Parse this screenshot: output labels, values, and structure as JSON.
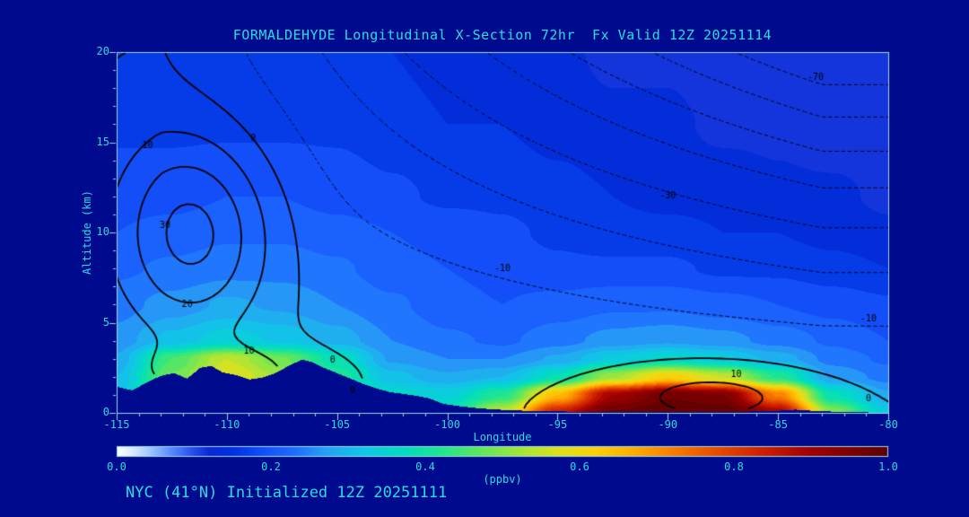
{
  "title": "FORMALDEHYDE Longitudinal X-Section 72hr  Fx Valid 12Z 20251114",
  "footer": "NYC (41°N) Initialized 12Z 20251111",
  "colors": {
    "background": "#000a8f",
    "text_cyan": "#2bdcdc",
    "frame": "#9cd9d9",
    "contour_lines": "#000000"
  },
  "chart_data": {
    "type": "heatmap",
    "subtype": "filled-contour-longitudinal-cross-section",
    "title": "FORMALDEHYDE Longitudinal X-Section 72hr  Fx Valid 12Z 20251114",
    "xlabel": "Longitude",
    "ylabel": "Altitude (km)",
    "xlim": [
      -115,
      -80
    ],
    "ylim": [
      0,
      20
    ],
    "x_ticks": [
      -115,
      -110,
      -105,
      -100,
      -95,
      -90,
      -85,
      -80
    ],
    "y_ticks": [
      0,
      5,
      10,
      15,
      20
    ],
    "fill_units": "ppbv",
    "fill_band_interval": 0.025,
    "colorbar": {
      "label": "(ppbv)",
      "ticks": [
        "0.0",
        "0.2",
        "0.4",
        "0.6",
        "0.8",
        "1.0"
      ],
      "stops": [
        [
          0.0,
          "#ffffff"
        ],
        [
          0.02,
          "#dcecff"
        ],
        [
          0.045,
          "#9bc4ff"
        ],
        [
          0.07,
          "#5a8cff"
        ],
        [
          0.095,
          "#2d55f0"
        ],
        [
          0.12,
          "#0a28d2"
        ],
        [
          0.15,
          "#0031e0"
        ],
        [
          0.19,
          "#1450fa"
        ],
        [
          0.23,
          "#1e6eff"
        ],
        [
          0.27,
          "#28a0f5"
        ],
        [
          0.32,
          "#0fc8e6"
        ],
        [
          0.37,
          "#00dcc3"
        ],
        [
          0.42,
          "#1ee691"
        ],
        [
          0.47,
          "#5fe65f"
        ],
        [
          0.52,
          "#a0e63c"
        ],
        [
          0.57,
          "#dce11e"
        ],
        [
          0.62,
          "#fad20a"
        ],
        [
          0.67,
          "#ffad00"
        ],
        [
          0.72,
          "#f87e00"
        ],
        [
          0.78,
          "#e64b00"
        ],
        [
          0.84,
          "#cd1e00"
        ],
        [
          0.9,
          "#a00000"
        ],
        [
          1.0,
          "#5c0000"
        ]
      ]
    },
    "grid_x": [
      -115,
      -112.5,
      -110,
      -107.5,
      -105,
      -102.5,
      -100,
      -97.5,
      -95,
      -92.5,
      -90,
      -87.5,
      -85,
      -82.5,
      -80
    ],
    "grid_y": [
      0,
      1,
      2,
      3,
      4,
      6,
      8,
      10,
      12,
      16,
      20
    ],
    "formaldehyde_ppbv": [
      [
        0.35,
        0.55,
        0.65,
        0.6,
        0.5,
        0.42,
        0.4,
        0.55,
        0.85,
        0.98,
        1.0,
        1.0,
        0.9,
        0.5,
        0.33
      ],
      [
        0.32,
        0.5,
        0.58,
        0.52,
        0.44,
        0.36,
        0.34,
        0.42,
        0.65,
        0.9,
        0.97,
        0.95,
        0.72,
        0.38,
        0.28
      ],
      [
        0.3,
        0.48,
        0.58,
        0.52,
        0.42,
        0.31,
        0.28,
        0.3,
        0.38,
        0.52,
        0.62,
        0.55,
        0.42,
        0.27,
        0.24
      ],
      [
        0.28,
        0.45,
        0.55,
        0.48,
        0.38,
        0.27,
        0.25,
        0.25,
        0.28,
        0.33,
        0.36,
        0.33,
        0.29,
        0.24,
        0.22
      ],
      [
        0.26,
        0.31,
        0.34,
        0.32,
        0.29,
        0.25,
        0.23,
        0.22,
        0.24,
        0.26,
        0.27,
        0.26,
        0.24,
        0.22,
        0.2
      ],
      [
        0.24,
        0.26,
        0.28,
        0.27,
        0.25,
        0.23,
        0.21,
        0.2,
        0.21,
        0.22,
        0.22,
        0.21,
        0.2,
        0.19,
        0.18
      ],
      [
        0.22,
        0.23,
        0.24,
        0.24,
        0.23,
        0.21,
        0.2,
        0.19,
        0.18,
        0.18,
        0.18,
        0.17,
        0.17,
        0.16,
        0.15
      ],
      [
        0.2,
        0.21,
        0.22,
        0.22,
        0.21,
        0.2,
        0.19,
        0.18,
        0.17,
        0.16,
        0.16,
        0.15,
        0.15,
        0.14,
        0.13
      ],
      [
        0.19,
        0.19,
        0.2,
        0.2,
        0.19,
        0.18,
        0.17,
        0.17,
        0.16,
        0.15,
        0.14,
        0.14,
        0.13,
        0.13,
        0.12
      ],
      [
        0.17,
        0.17,
        0.17,
        0.17,
        0.17,
        0.16,
        0.15,
        0.15,
        0.14,
        0.13,
        0.13,
        0.12,
        0.12,
        0.11,
        0.11
      ],
      [
        0.16,
        0.16,
        0.16,
        0.16,
        0.16,
        0.15,
        0.14,
        0.14,
        0.13,
        0.12,
        0.12,
        0.11,
        0.11,
        0.1,
        0.1
      ]
    ],
    "terrain_km": {
      "x": [
        -115,
        -114.3,
        -113.6,
        -113.0,
        -112.4,
        -111.8,
        -111.2,
        -110.7,
        -110.2,
        -109.6,
        -109.0,
        -108.4,
        -107.8,
        -107.2,
        -106.6,
        -106.1,
        -105.6,
        -105.0,
        -104.4,
        -103.8,
        -103.2,
        -102.6,
        -102.0,
        -101.4,
        -100.8,
        -100.2,
        -99.5,
        -98.8,
        -98.0,
        -97.0,
        -96.0,
        -95.0,
        -93.5,
        -92.0,
        -90.5,
        -89.0,
        -87.5,
        -86.0,
        -85.0,
        -84.2,
        -83.5,
        -82.5,
        -81.5,
        -80.7,
        -80.0
      ],
      "h": [
        1.45,
        1.25,
        1.7,
        2.05,
        2.2,
        1.9,
        2.5,
        2.6,
        2.25,
        2.1,
        1.85,
        1.95,
        2.2,
        2.6,
        2.95,
        2.8,
        2.5,
        2.2,
        1.9,
        1.6,
        1.35,
        1.15,
        1.05,
        0.95,
        0.8,
        0.5,
        0.38,
        0.28,
        0.2,
        0.14,
        0.1,
        0.08,
        0.06,
        0.05,
        0.05,
        0.04,
        0.05,
        0.08,
        0.12,
        0.18,
        0.12,
        0.07,
        0.04,
        0.02,
        0.0
      ]
    },
    "overlay_contours": {
      "interval": 10,
      "levels": [
        -70,
        -60,
        -50,
        -40,
        -30,
        -20,
        -10,
        0,
        10,
        20,
        30
      ],
      "negative_style": "dotted",
      "color": "#000000",
      "gaussians": [
        {
          "amp": 35,
          "x0": -111.5,
          "sx": 3.5,
          "y0": 10,
          "sy": 5.5
        },
        {
          "amp": 14,
          "x0": -110,
          "sx": 4,
          "y0": 2.2,
          "sy": 1.6
        },
        {
          "amp": 14,
          "x0": -88,
          "sx": 5,
          "y0": 1.0,
          "sy": 1.9
        }
      ],
      "background": {
        "amp": -80,
        "x_start": -113,
        "x_scale": 30,
        "y_power": 1.5,
        "offset": -0.6
      },
      "labels": [
        {
          "text": "10",
          "lon": -113.6,
          "alt": 14.8
        },
        {
          "text": "30",
          "lon": -112.8,
          "alt": 10.4
        },
        {
          "text": "20",
          "lon": -111.8,
          "alt": 6.0
        },
        {
          "text": "10",
          "lon": -109.0,
          "alt": 3.4
        },
        {
          "text": "0",
          "lon": -108.8,
          "alt": 15.2
        },
        {
          "text": "0",
          "lon": -105.2,
          "alt": 2.9
        },
        {
          "text": "0",
          "lon": -104.3,
          "alt": 1.2
        },
        {
          "text": "-10",
          "lon": -97.5,
          "alt": 8.0
        },
        {
          "text": "-30",
          "lon": -90.0,
          "alt": 12.0
        },
        {
          "text": "-70",
          "lon": -83.3,
          "alt": 18.6
        },
        {
          "text": "-10",
          "lon": -80.9,
          "alt": 5.2
        },
        {
          "text": "10",
          "lon": -86.9,
          "alt": 2.1
        },
        {
          "text": "0",
          "lon": -80.9,
          "alt": 0.8
        }
      ]
    }
  }
}
